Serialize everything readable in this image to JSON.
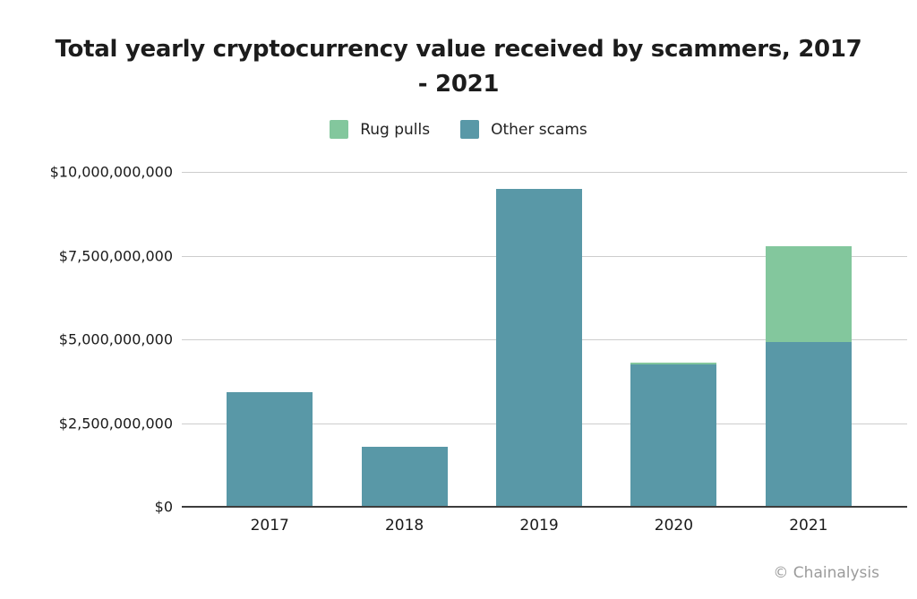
{
  "header": {
    "title_lines": [
      "Total yearly cryptocurrency value received by scammers, 2017",
      "- 2021"
    ]
  },
  "watermark": "© Chainalysis",
  "chart_data": {
    "type": "bar",
    "stacked": true,
    "title": "Total yearly cryptocurrency value received by scammers, 2017 - 2021",
    "categories": [
      "2017",
      "2018",
      "2019",
      "2020",
      "2021"
    ],
    "series": [
      {
        "name": "Rug pulls",
        "color": "#83c79d",
        "values_billions": [
          0,
          0,
          0,
          0.05,
          2.85
        ]
      },
      {
        "name": "Other scams",
        "color": "#5998a7",
        "values_billions": [
          3.42,
          1.79,
          9.48,
          4.25,
          4.92
        ]
      }
    ],
    "totals_billions": [
      3.42,
      1.79,
      9.48,
      4.3,
      7.77
    ],
    "y_axis": {
      "max_billions": 10,
      "ticks": [
        {
          "label": "$10,000,000,000",
          "value_billions": 10
        },
        {
          "label": "$7,500,000,000",
          "value_billions": 7.5
        },
        {
          "label": "$5,000,000,000",
          "value_billions": 5
        },
        {
          "label": "$2,500,000,000",
          "value_billions": 2.5
        },
        {
          "label": "$0",
          "value_billions": 0
        }
      ]
    },
    "legend": {
      "position": "top",
      "items": [
        "Rug pulls",
        "Other scams"
      ]
    },
    "grid": "horizontal",
    "colors": {
      "rug_pulls": "#83c79d",
      "other_scams": "#5998a7",
      "gridline": "#cdcdcd",
      "axis": "#3d3d3d",
      "title": "#1c1c1c",
      "watermark": "#9b9b9b"
    }
  }
}
